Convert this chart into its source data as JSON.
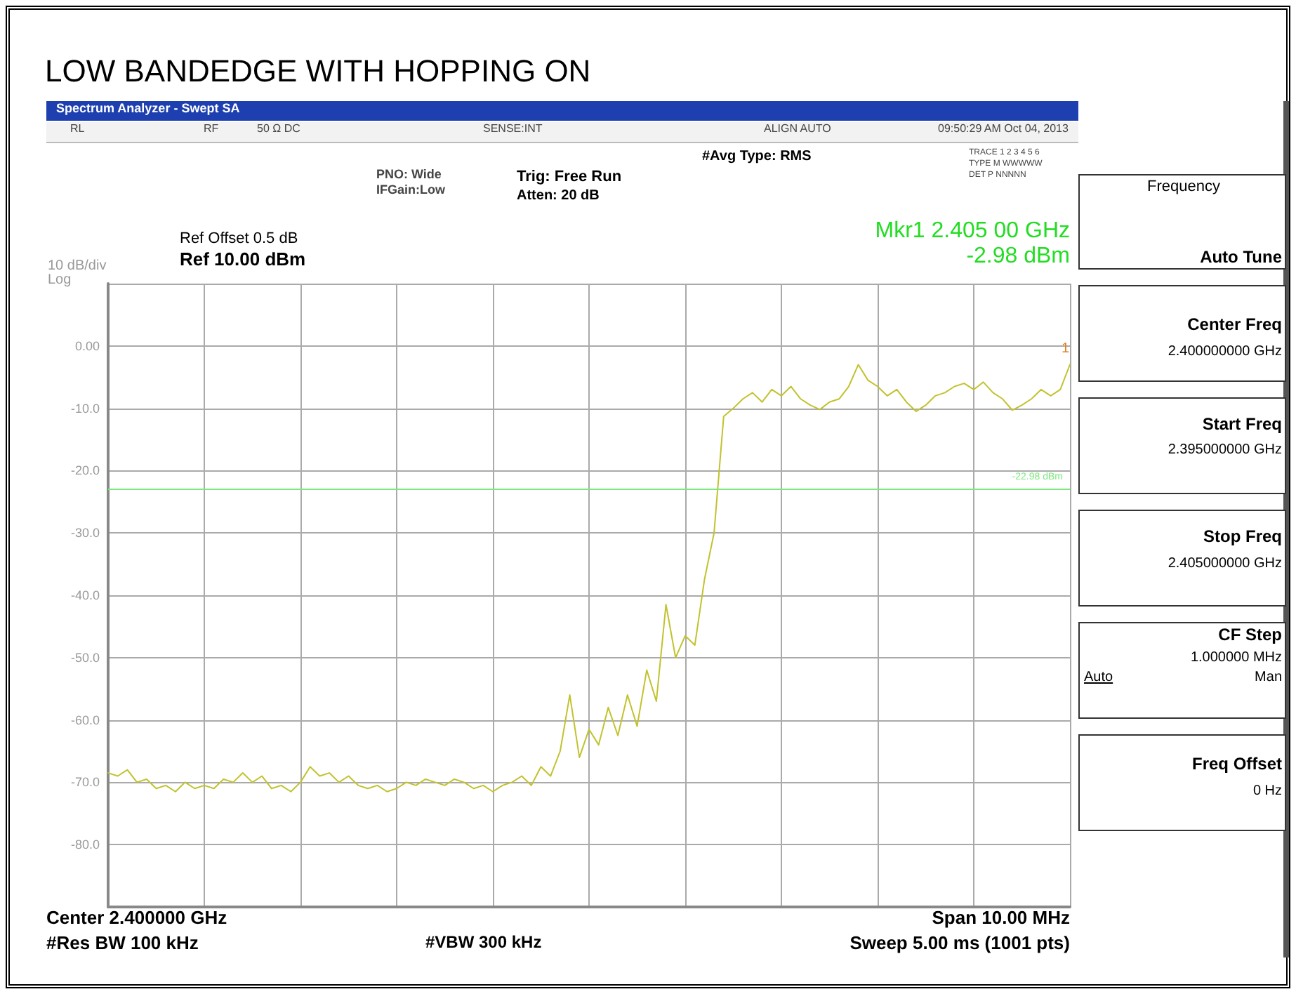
{
  "chart_data": {
    "type": "line",
    "title": "LOW BANDEDGE WITH HOPPING ON",
    "categories": [
      null,
      null,
      null,
      null,
      null,
      null,
      null,
      null,
      null,
      null,
      null,
      null,
      null,
      null,
      null,
      null,
      null,
      null,
      null,
      null,
      null,
      null,
      null,
      null,
      null,
      null,
      null,
      null,
      null,
      null,
      null,
      null,
      null,
      null,
      null,
      null,
      null,
      null,
      null,
      null,
      null,
      null,
      null,
      null,
      null,
      null,
      null,
      null,
      null,
      null,
      null,
      null,
      null,
      null,
      null,
      null,
      null,
      null,
      null,
      null,
      null,
      null,
      null,
      null,
      null,
      null,
      null,
      null,
      null,
      null,
      null,
      null,
      null,
      null,
      null,
      null,
      null,
      null,
      null,
      null,
      null,
      null,
      null,
      null,
      null,
      null,
      null,
      null,
      null,
      null,
      null,
      null,
      null,
      null,
      null,
      null,
      null,
      null,
      null,
      null,
      null
    ],
    "series": [
      {
        "color": "#c2c22e",
        "values": [
          -68.5,
          -69,
          -68,
          -70,
          -69.5,
          -71,
          -70.5,
          -71.5,
          -70,
          -71,
          -70.5,
          -71,
          -69.5,
          -70,
          -68.5,
          -70,
          -69,
          -71,
          -70.5,
          -71.5,
          -70,
          -67.5,
          -69,
          -68.5,
          -70,
          -69,
          -70.5,
          -71,
          -70.5,
          -71.5,
          -71,
          -70,
          -70.5,
          -69.5,
          -70,
          -70.5,
          -69.5,
          -70,
          -71,
          -70.5,
          -71.5,
          -70.5,
          -70,
          -69,
          -70.5,
          -67.5,
          -69,
          -65,
          -56,
          -66,
          -61.5,
          -64,
          -58,
          -62.5,
          -56,
          -61,
          -52,
          -57,
          -41.5,
          -50,
          -46.5,
          -48,
          -37.5,
          -30,
          -11.3,
          -10,
          -8.5,
          -7.5,
          -9,
          -7,
          -8,
          -6.5,
          -8.5,
          -9.5,
          -10.2,
          -9,
          -8.5,
          -6.5,
          -3,
          -5.5,
          -6.5,
          -8,
          -7,
          -9,
          -10.5,
          -9.5,
          -8,
          -7.5,
          -6.5,
          -6,
          -7,
          -5.8,
          -7.5,
          -8.5,
          -10.3,
          -9.5,
          -8.5,
          -7,
          -8,
          -7,
          -2.98
        ]
      }
    ],
    "ylim": [
      -90,
      10
    ],
    "yticks": [
      {
        "value": -90,
        "label": null
      },
      {
        "value": -80,
        "label": "-80.0"
      },
      {
        "value": -70,
        "label": "-70.0"
      },
      {
        "value": -60,
        "label": "-60.0"
      },
      {
        "value": -50,
        "label": "-50.0"
      },
      {
        "value": -40,
        "label": "-40.0"
      },
      {
        "value": -30,
        "label": "-30.0"
      },
      {
        "value": -20,
        "label": "-20.0"
      },
      {
        "value": -10,
        "label": "-10.0"
      },
      {
        "value": 0,
        "label": "0.00"
      },
      {
        "value": 10,
        "label": null
      }
    ],
    "tick_labels": "y",
    "grid": true,
    "line_style": "solid",
    "ref_lines": [
      {
        "axis": "y",
        "value": -22.98,
        "label": "-22.98 dBm",
        "color": "#7ee87e"
      }
    ],
    "annotations": [
      "Spectrum Analyzer - Swept SA",
      "RL",
      "RF",
      "50 Ω DC",
      "SENSE:INT",
      "ALIGN AUTO",
      "09:50:29 AM Oct 04, 2013",
      "#Avg Type: RMS",
      "TRACE 1 2 3 4 5 6",
      "TYPE M WWWWW",
      "DET P NNNNN",
      "PNO: Wide",
      "IFGain:Low",
      "Trig: Free Run",
      "Atten: 20 dB",
      "Ref Offset 0.5 dB",
      "Ref 10.00 dBm",
      "10 dB/div",
      "Log",
      "Mkr1 2.405 00 GHz",
      "-2.98 dBm",
      "Center 2.400000 GHz",
      "#Res BW 100 kHz",
      "#VBW 300 kHz",
      "Span 10.00 MHz",
      "Sweep  5.00 ms (1001 pts)",
      "Frequency",
      "Auto Tune",
      "Center Freq",
      "2.400000000 GHz",
      "Start Freq",
      "2.395000000 GHz",
      "Stop Freq",
      "2.405000000 GHz",
      "CF Step",
      "1.000000 MHz",
      "Auto",
      "Man",
      "Freq Offset",
      "0 Hz",
      {
        "text": "1",
        "y": -2.98
      }
    ]
  }
}
